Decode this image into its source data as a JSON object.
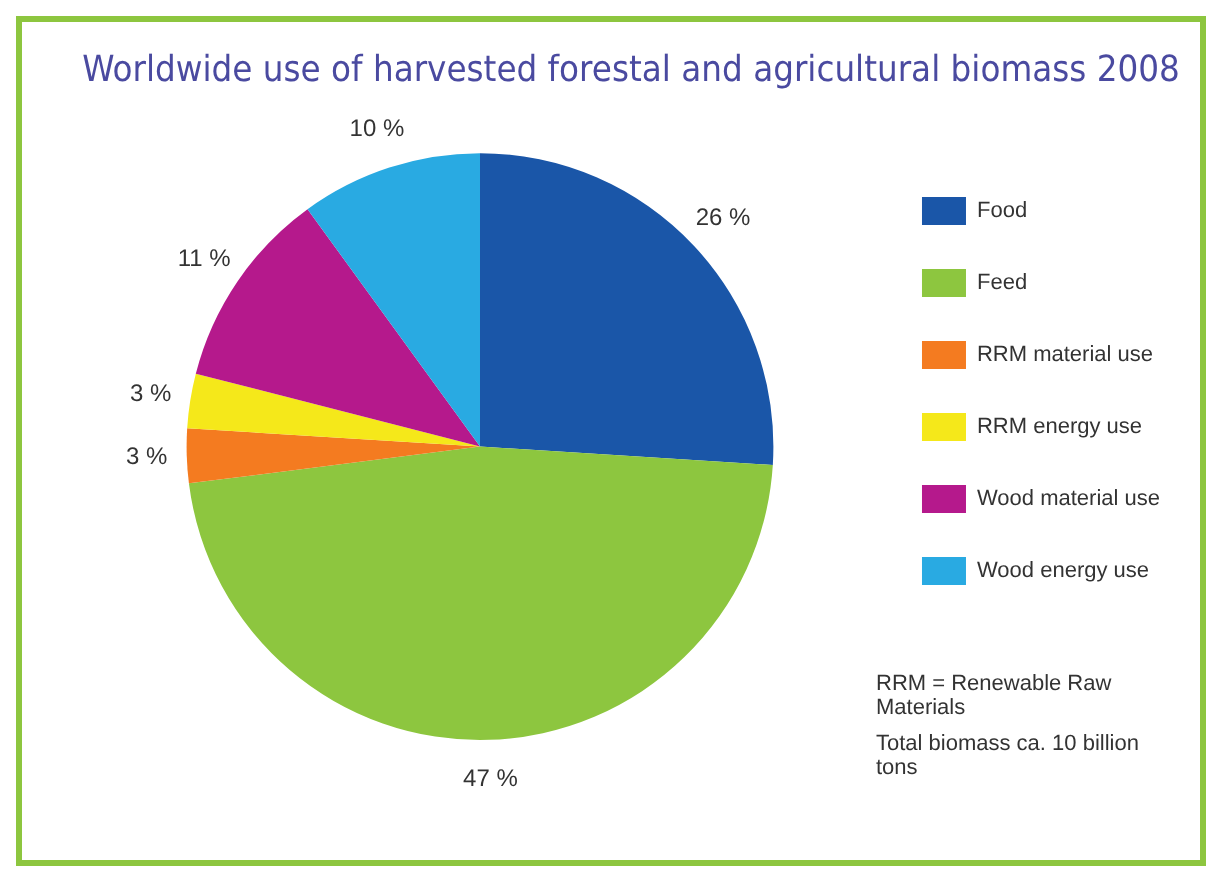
{
  "chart_data": {
    "type": "pie",
    "title": "Worldwide use of harvested forestal and agricultural biomass 2008",
    "categories": [
      "Food",
      "Feed",
      "RRM material use",
      "RRM energy use",
      "Wood material use",
      "Wood energy use"
    ],
    "values": [
      26,
      47,
      3,
      3,
      11,
      10
    ],
    "colors": [
      "#1a56a8",
      "#8dc63f",
      "#f47b20",
      "#f5e81a",
      "#b5198c",
      "#29aae2"
    ],
    "value_labels": [
      "26 %",
      "47 %",
      "3 %",
      "3 %",
      "11 %",
      "10 %"
    ],
    "legend": "right",
    "annotations": [
      "RRM = Renewable Raw Materials",
      "Total biomass ca. 10 billion tons"
    ]
  }
}
